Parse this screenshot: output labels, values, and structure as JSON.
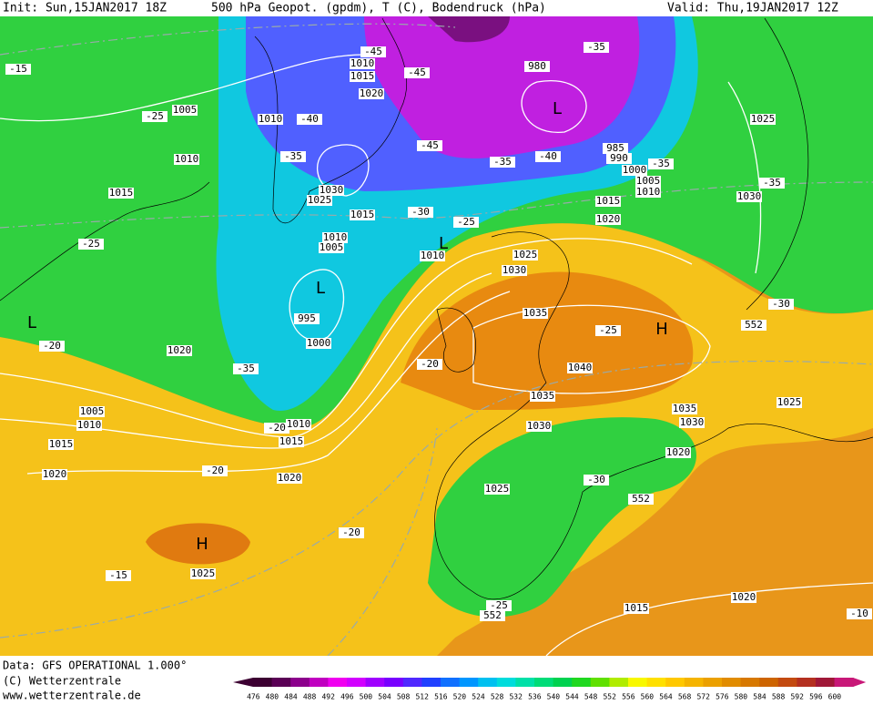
{
  "header": {
    "init": "Init: Sun,15JAN2017 18Z",
    "title": "500 hPa Geopot. (gpdm), T (C), Bodendruck (hPa)",
    "valid": "Valid: Thu,19JAN2017 12Z"
  },
  "footer": {
    "data": "Data: GFS OPERATIONAL 1.000°",
    "copyright": "(C) Wetterzentrale",
    "url": "www.wetterzentrale.de"
  },
  "colorbar": {
    "values": [
      476,
      480,
      484,
      488,
      492,
      496,
      500,
      504,
      508,
      512,
      516,
      520,
      524,
      528,
      532,
      536,
      540,
      544,
      548,
      552,
      556,
      560,
      564,
      568,
      572,
      576,
      580,
      584,
      588,
      592,
      596,
      600
    ],
    "colors": [
      "#3c0032",
      "#5a0055",
      "#8c008c",
      "#c000c0",
      "#f000f0",
      "#d200ff",
      "#a000ff",
      "#7800ff",
      "#5028ff",
      "#2040ff",
      "#1070ff",
      "#0096ff",
      "#00c0f0",
      "#00dcdc",
      "#00e0a8",
      "#00dc78",
      "#00d250",
      "#20d820",
      "#60e000",
      "#b0ec00",
      "#f8f800",
      "#ffe000",
      "#ffc800",
      "#f5b400",
      "#eba000",
      "#e18c00",
      "#d77800",
      "#cd6400",
      "#c34a10",
      "#b43020",
      "#a01838",
      "#c81878"
    ]
  },
  "map": {
    "labels": [
      "-15",
      "-25",
      "1005",
      "1010",
      "1015",
      "-25",
      "L",
      "-20",
      "1020",
      "-35",
      "1005",
      "1010",
      "1015",
      "1020",
      "-20",
      "1020",
      "H",
      "-15",
      "1025",
      "-20",
      "-45",
      "1010",
      "1015",
      "1020",
      "-45",
      "-40",
      "1010",
      "-35",
      "-45",
      "1030",
      "1025",
      "1015",
      "-30",
      "-25",
      "1010",
      "1005",
      "L",
      "1010",
      "L",
      "995",
      "1000",
      "-20",
      "1010",
      "1015",
      "980",
      "-35",
      "L",
      "1025",
      "-35",
      "-40",
      "985",
      "990",
      "1000",
      "-35",
      "1005",
      "1010",
      "1015",
      "1020",
      "1030",
      "-35",
      "1025",
      "1030",
      "1035",
      "-25",
      "H",
      "-30",
      "552",
      "-20",
      "1040",
      "1035",
      "1030",
      "1035",
      "1030",
      "1025",
      "1020",
      "-30",
      "552",
      "1025",
      "-25",
      "552",
      "1015",
      "1020",
      "-10"
    ]
  }
}
